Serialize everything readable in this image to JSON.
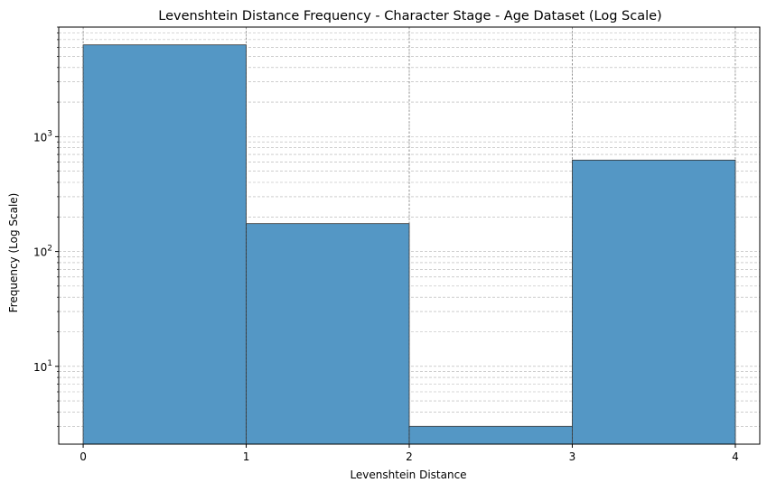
{
  "chart_data": {
    "type": "bar",
    "title": "Levenshtein Distance Frequency - Character Stage - Age Dataset (Log Scale)",
    "xlabel": "Levenshtein Distance",
    "ylabel": "Frequency (Log Scale)",
    "yscale": "log",
    "grid": true,
    "bins": [
      {
        "x0": 0,
        "x1": 1,
        "value": 6300
      },
      {
        "x0": 1,
        "x1": 2,
        "value": 175
      },
      {
        "x0": 2,
        "x1": 3,
        "value": 3
      },
      {
        "x0": 3,
        "x1": 4,
        "value": 625
      }
    ],
    "xlim": [
      -0.15,
      4.15
    ],
    "ylim": [
      2.1,
      9000
    ],
    "xticks": [
      0,
      1,
      2,
      3,
      4
    ],
    "xtick_labels": [
      "0",
      "1",
      "2",
      "3",
      "4"
    ],
    "yticks": [
      {
        "value": 10,
        "base": "10",
        "exp": "1"
      },
      {
        "value": 100,
        "base": "10",
        "exp": "2"
      },
      {
        "value": 1000,
        "base": "10",
        "exp": "3"
      }
    ],
    "bar_color": "#5497c5",
    "edge_color": "#333333"
  }
}
